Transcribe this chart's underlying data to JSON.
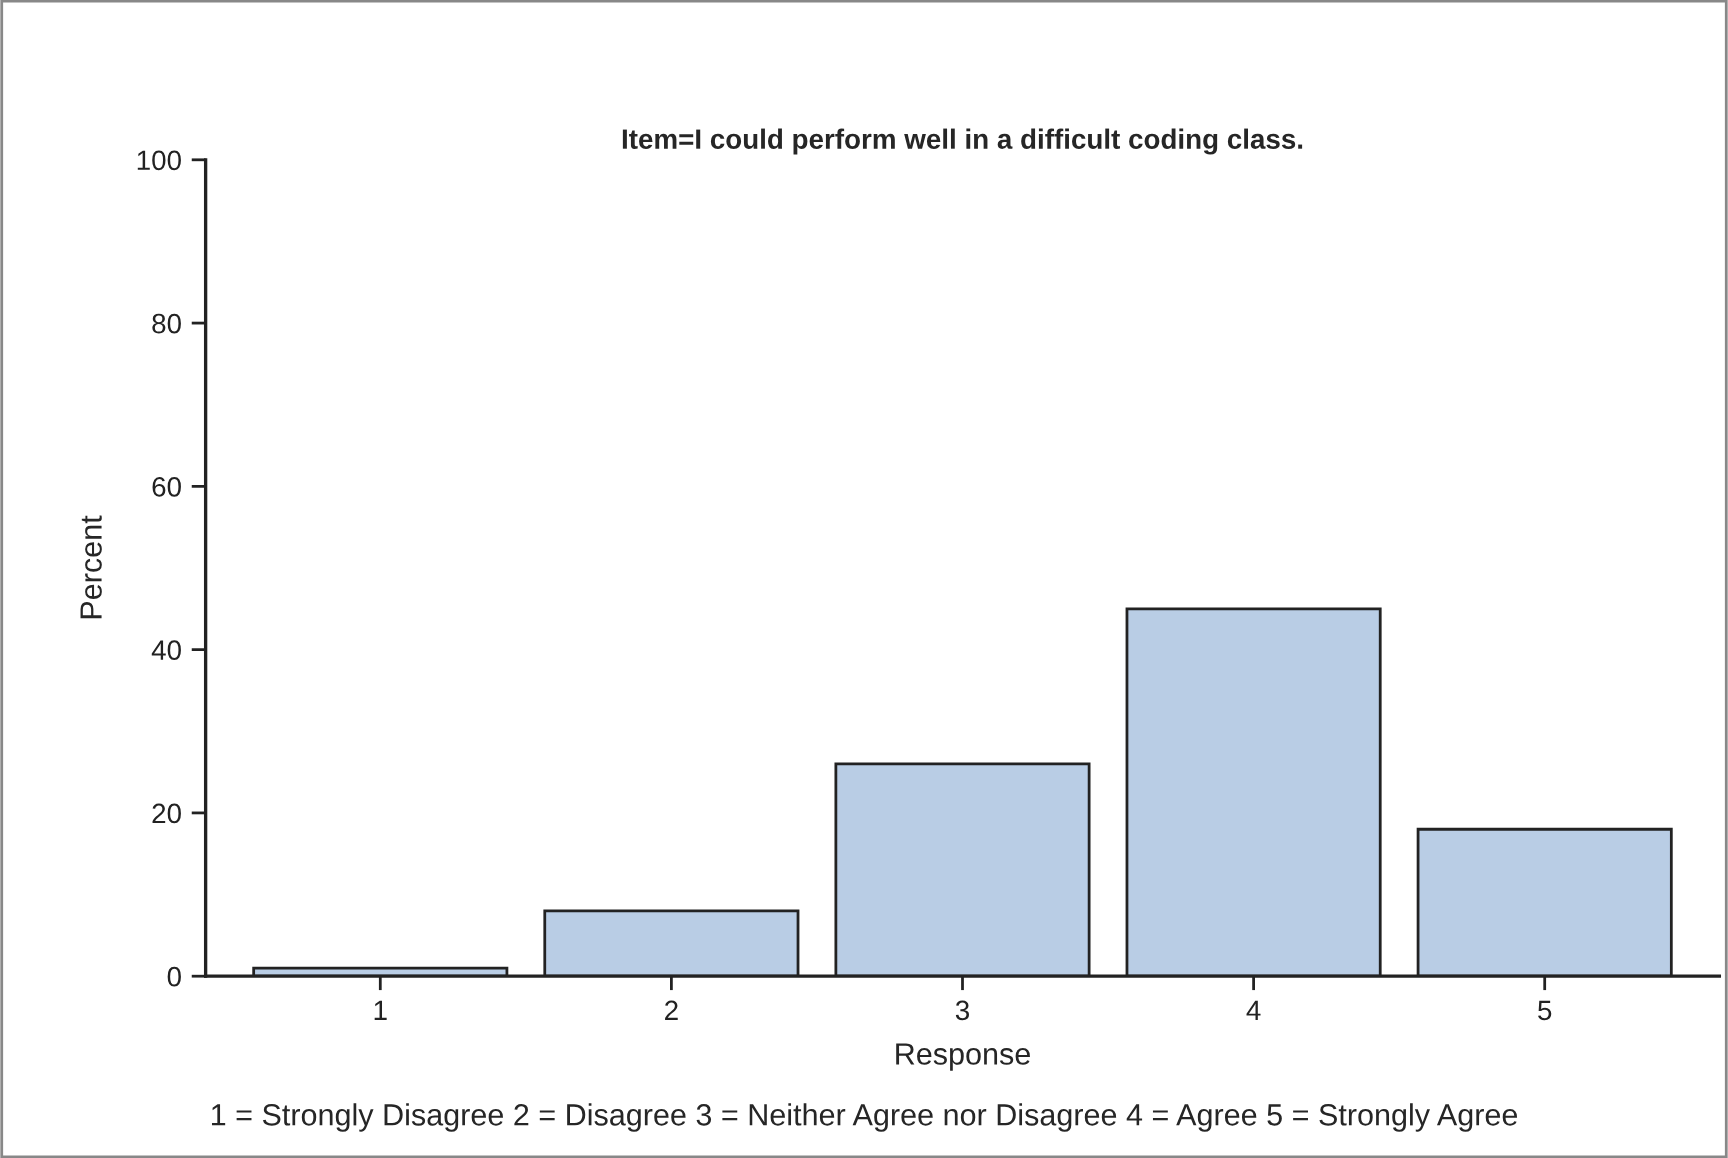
{
  "chart_data": {
    "type": "bar",
    "title": "Item=I could perform well in a difficult coding class.",
    "xlabel": "Response",
    "ylabel": "Percent",
    "categories": [
      "1",
      "2",
      "3",
      "4",
      "5"
    ],
    "values": [
      1,
      8,
      26,
      45,
      18
    ],
    "color": "#b9cde5",
    "ylim": [
      0,
      100
    ],
    "yticks": [
      0,
      20,
      40,
      60,
      80,
      100
    ],
    "grid": false,
    "legend": false,
    "annotations": [
      "1 = Strongly Disagree 2 = Disagree 3 = Neither Agree nor Disagree 4 = Agree 5 = Strongly Agree"
    ]
  }
}
